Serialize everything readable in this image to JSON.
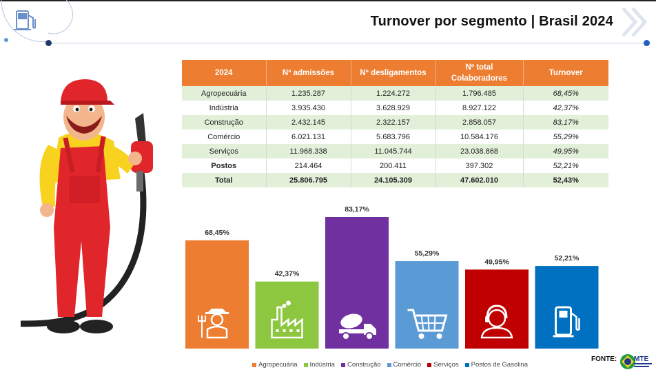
{
  "header": {
    "title": "Turnover por segmento | Brasil 2024"
  },
  "table": {
    "columns": [
      "2024",
      "Nº admissões",
      "Nº desligamentos",
      "Nº total\nColaboradores",
      "Turnover"
    ],
    "rows": [
      [
        "Agropecuária",
        "1.235.287",
        "1.224.272",
        "1.796.485",
        "68,45%"
      ],
      [
        "Indústria",
        "3.935.430",
        "3.628.929",
        "8.927.122",
        "42,37%"
      ],
      [
        "Construção",
        "2.432.145",
        "2.322.157",
        "2.858.057",
        "83,17%"
      ],
      [
        "Comércio",
        "6.021.131",
        "5.683.796",
        "10.584.176",
        "55,29%"
      ],
      [
        "Serviços",
        "11.968.338",
        "11.045.744",
        "23.038.868",
        "49,95%"
      ],
      [
        "Postos",
        "214.464",
        "200.411",
        "397.302",
        "52,21%"
      ],
      [
        "Total",
        "25.806.795",
        "24.105.309",
        "47.602.010",
        "52,43%"
      ]
    ]
  },
  "chart_data": {
    "type": "bar",
    "categories": [
      "Agropecuária",
      "Indústria",
      "Construção",
      "Comércio",
      "Serviços",
      "Postos de Gasolina"
    ],
    "values": [
      68.45,
      42.37,
      83.17,
      55.29,
      49.95,
      52.21
    ],
    "data_labels": [
      "68,45%",
      "42,37%",
      "83,17%",
      "55,29%",
      "49,95%",
      "52,21%"
    ],
    "colors": [
      "#ed7d31",
      "#8dc63f",
      "#7030a0",
      "#5b9bd5",
      "#c00000",
      "#0070c0"
    ],
    "icons": [
      "farmer-icon",
      "factory-icon",
      "cement-truck-icon",
      "shopping-cart-icon",
      "customer-service-icon",
      "fuel-pump-icon"
    ],
    "ylim": [
      0,
      83.17
    ],
    "grid": false,
    "legend_position": "bottom"
  },
  "legend": {
    "items": [
      "Agropecuária",
      "Indústria",
      "Construção",
      "Comércio",
      "Serviços",
      "Postos de Gasolina"
    ]
  },
  "footer": {
    "source_label": "FONTE:",
    "logo_text": "MTE"
  },
  "decor": {
    "header_icon": "fuel-pump-icon",
    "illustration": "gas-station-attendant-mascot"
  }
}
